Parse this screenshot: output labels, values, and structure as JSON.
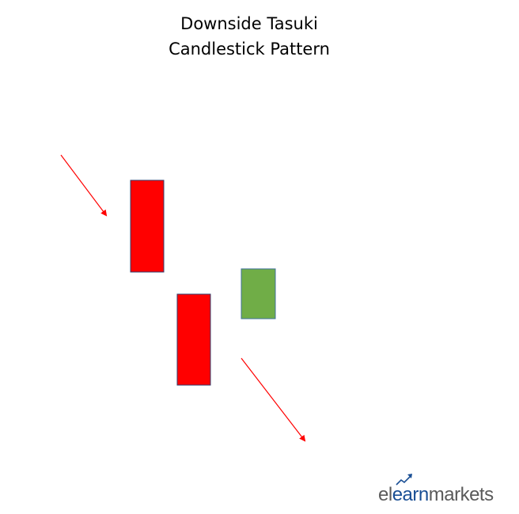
{
  "title": {
    "line1": "Downside Tasuki",
    "line2": "Candlestick Pattern"
  },
  "colors": {
    "bearish": "#ff0000",
    "bullish": "#70ad47",
    "arrow": "#ff0000",
    "candle_border": "#2f3f6f",
    "logo_grey": "#5a5a5a",
    "logo_blue": "#1a4f95"
  },
  "candles": [
    {
      "name": "first-bearish-candle",
      "type": "bearish"
    },
    {
      "name": "second-bearish-candle",
      "type": "bearish"
    },
    {
      "name": "bullish-candle",
      "type": "bullish"
    }
  ],
  "arrows": [
    {
      "name": "downtrend-arrow-top",
      "direction": "down-right"
    },
    {
      "name": "downtrend-arrow-bottom",
      "direction": "down-right"
    }
  ],
  "logo": {
    "part1": "el",
    "part2": "earn",
    "part3": "markets",
    "icon": "trend-up-arrow-icon"
  }
}
